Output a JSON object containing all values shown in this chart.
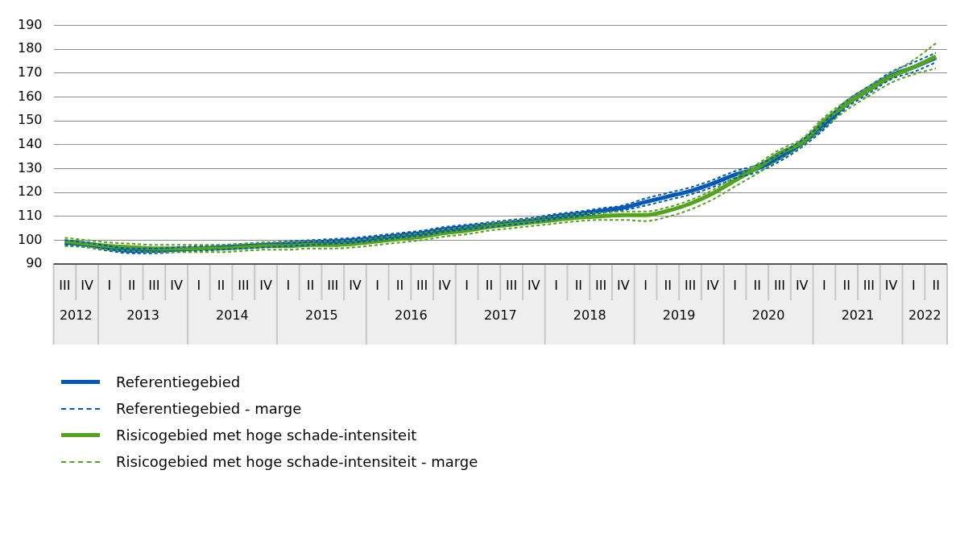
{
  "chart_data": {
    "type": "line",
    "categories": [
      "III",
      "IV",
      "I",
      "II",
      "III",
      "IV",
      "I",
      "II",
      "III",
      "IV",
      "I",
      "II",
      "III",
      "IV",
      "I",
      "II",
      "III",
      "IV",
      "I",
      "II",
      "III",
      "IV",
      "I",
      "II",
      "III",
      "IV",
      "I",
      "II",
      "III",
      "IV",
      "I",
      "II",
      "III",
      "IV",
      "I",
      "II",
      "III",
      "IV",
      "I",
      "II"
    ],
    "annotations": [
      "2012",
      "2013",
      "2014",
      "2015",
      "2016",
      "2017",
      "2018",
      "2019",
      "2020",
      "2021",
      "2022"
    ],
    "ylim": [
      90,
      190
    ],
    "yticks": [
      90,
      100,
      110,
      120,
      130,
      140,
      150,
      160,
      170,
      180,
      190
    ],
    "grid": "y",
    "legend": "bottom",
    "series": [
      {
        "name": "Referentiegebied",
        "color": "#0058b8",
        "line_style": "solid",
        "values": [
          99,
          98,
          96.5,
          95.5,
          95.5,
          96,
          96.5,
          97,
          97.5,
          98,
          98.5,
          99,
          99.5,
          100,
          101,
          102,
          103,
          104.5,
          105.5,
          106.5,
          107.5,
          108.5,
          110,
          111,
          112.3,
          113.6,
          116,
          118.3,
          120.6,
          123.7,
          127.4,
          130,
          134.5,
          140.5,
          148,
          157,
          163,
          169,
          172.5,
          176.5
        ]
      },
      {
        "name": "Referentiegebied - marge",
        "color": "#0058b8",
        "line_style": "dashed",
        "values": [
          100,
          99,
          97.5,
          96.5,
          96.5,
          97,
          97.5,
          98,
          98.5,
          99,
          99.5,
          100,
          100.5,
          101,
          102,
          103,
          104,
          105.5,
          106.5,
          107.5,
          108.5,
          109.5,
          111,
          112,
          113.3,
          114.6,
          117.5,
          119.8,
          122.1,
          125.2,
          128.9,
          131.5,
          136,
          142,
          149.5,
          158.5,
          164.5,
          170.5,
          174.5,
          178.5
        ]
      },
      {
        "color": "#0058b8",
        "line_style": "dashed",
        "values": [
          98,
          97,
          95.5,
          94.5,
          94.5,
          95,
          95.5,
          96,
          96.5,
          97,
          97.5,
          98,
          98.5,
          99,
          100,
          101,
          102,
          103.5,
          104.5,
          105.5,
          106.5,
          107.5,
          109,
          110,
          111.3,
          112.6,
          114.5,
          116.8,
          119.1,
          122.2,
          125.9,
          128.5,
          133,
          139,
          146.5,
          155.5,
          161.5,
          167.5,
          170.5,
          174.5
        ]
      },
      {
        "name": "Risicogebied met hoge schade-intensiteit",
        "color": "#53a31d",
        "line_style": "solid",
        "values": [
          99.5,
          98.5,
          97.5,
          97,
          96.5,
          96.5,
          96.5,
          96.5,
          97,
          97.5,
          97.5,
          98,
          98,
          98.5,
          99.5,
          100.5,
          101.5,
          103,
          104,
          105.5,
          106.5,
          107.5,
          108.5,
          109.5,
          110,
          110.5,
          110.5,
          112.3,
          115.3,
          119.5,
          125,
          130.4,
          136.4,
          141,
          150,
          157,
          163,
          168.5,
          172.5,
          177
        ]
      },
      {
        "name": "Risicogebied met hoge schade-intensiteit - marge",
        "color": "#53a31d",
        "line_style": "dashed",
        "values": [
          101,
          100,
          99,
          98.5,
          98,
          98,
          98,
          98,
          98.5,
          99,
          99,
          99.5,
          99.5,
          100,
          101,
          102,
          103,
          104.5,
          105.5,
          107,
          108,
          109,
          110,
          111,
          111.5,
          112,
          112,
          113.8,
          116.8,
          121,
          126.5,
          131.9,
          137.9,
          142.5,
          151.5,
          158.5,
          164.5,
          170,
          175.5,
          182.5
        ]
      },
      {
        "color": "#53a31d",
        "line_style": "dashed",
        "values": [
          97.5,
          97,
          96,
          95.5,
          95,
          95,
          95,
          95,
          95.5,
          96,
          96,
          96.5,
          96.5,
          97,
          98,
          99,
          100,
          101.5,
          102.5,
          104,
          105,
          106,
          107,
          108,
          108.5,
          108.5,
          108,
          109.8,
          112.8,
          117,
          122.5,
          127.9,
          133.9,
          139.5,
          147.5,
          154.5,
          160.5,
          166,
          169.5,
          172
        ]
      }
    ]
  }
}
